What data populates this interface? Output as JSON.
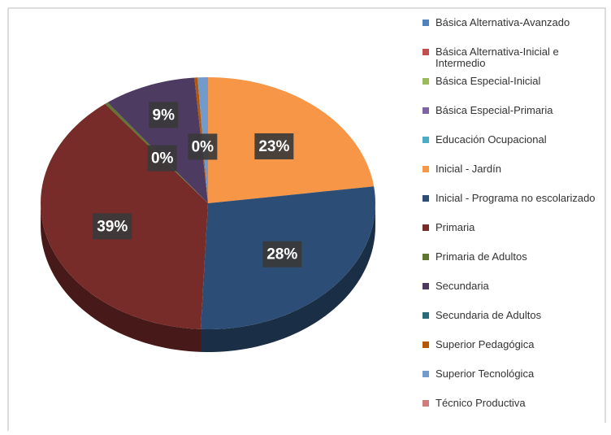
{
  "chart_data": {
    "type": "pie3d",
    "categories": [
      "Básica Alternativa-Avanzado",
      "Básica Alternativa-Inicial e Intermedio",
      "Básica Especial-Inicial",
      "Básica Especial-Primaria",
      "Educación Ocupacional",
      "Inicial - Jardín",
      "Inicial - Programa no escolarizado",
      "Primaria",
      "Primaria de Adultos",
      "Secundaria",
      "Secundaria de Adultos",
      "Superior Pedagógica",
      "Superior Tecnológica",
      "Técnico Productiva"
    ],
    "values": [
      0,
      0,
      0,
      0,
      0,
      23,
      28,
      39,
      0.3,
      9,
      0,
      0.3,
      1,
      0
    ],
    "value_labels": [
      null,
      null,
      null,
      null,
      null,
      "23%",
      "28%",
      "39%",
      "0%",
      "9%",
      null,
      "0%",
      null,
      null
    ],
    "colors": [
      "#4f81bd",
      "#c0504d",
      "#9bbb59",
      "#8064a2",
      "#4bacc6",
      "#f79646",
      "#2c4d75",
      "#772c2a",
      "#5f7530",
      "#4d3b62",
      "#276a7c",
      "#b65708",
      "#729aca",
      "#d07c7a"
    ],
    "legend": "right"
  }
}
